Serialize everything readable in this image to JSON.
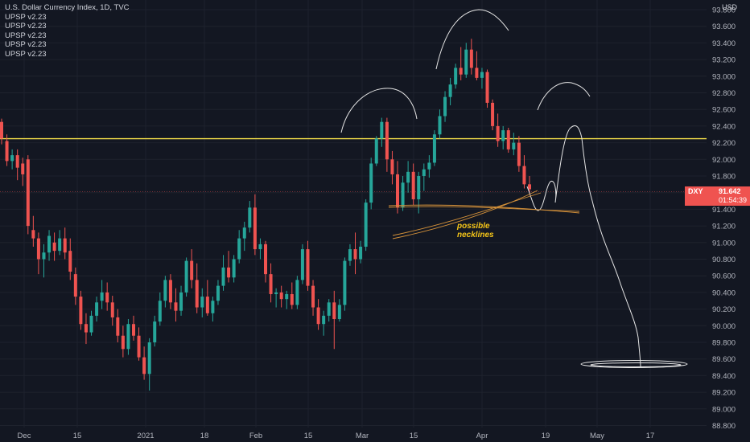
{
  "header": {
    "title": "U.S. Dollar Currency Index, 1D, TVC",
    "indicators": [
      "UPSP v2.23",
      "UPSP v2.23",
      "UPSP v2.23",
      "UPSP v2.23",
      "UPSP v2.23"
    ]
  },
  "price_axis": {
    "currency": "USD",
    "ticks": [
      "93.800",
      "93.600",
      "93.400",
      "93.200",
      "93.000",
      "92.800",
      "92.600",
      "92.400",
      "92.200",
      "92.000",
      "91.800",
      "91.600",
      "91.400",
      "91.200",
      "91.000",
      "90.800",
      "90.600",
      "90.400",
      "90.200",
      "90.000",
      "89.800",
      "89.600",
      "89.400",
      "89.200",
      "89.000",
      "88.800"
    ]
  },
  "time_axis": {
    "ticks": [
      "Dec",
      "15",
      "2021",
      "18",
      "Feb",
      "15",
      "Mar",
      "15",
      "Apr",
      "19",
      "May",
      "17"
    ]
  },
  "price_tag": {
    "symbol": "DXY",
    "value": "91.642",
    "countdown": "01:54:39"
  },
  "annotation": {
    "line1": "possible",
    "line2": "necklines"
  },
  "chart_data": {
    "type": "candlestick",
    "symbol": "DXY",
    "interval": "1D",
    "ylim": [
      88.7,
      93.85
    ],
    "horizontal_line": 92.27,
    "last_price": 91.642,
    "ohlc": [
      [
        92.45,
        92.49,
        92.18,
        92.25
      ],
      [
        92.22,
        92.3,
        91.92,
        91.98
      ],
      [
        91.98,
        92.12,
        91.88,
        92.05
      ],
      [
        92.05,
        92.12,
        91.75,
        91.9
      ],
      [
        91.95,
        92.02,
        91.68,
        91.82
      ],
      [
        92.0,
        92.05,
        91.1,
        91.2
      ],
      [
        91.15,
        91.32,
        90.95,
        91.05
      ],
      [
        91.05,
        91.12,
        90.62,
        90.8
      ],
      [
        90.8,
        90.98,
        90.58,
        90.88
      ],
      [
        90.88,
        91.15,
        90.78,
        91.08
      ],
      [
        91.0,
        91.12,
        90.78,
        90.9
      ],
      [
        90.9,
        91.15,
        90.85,
        91.05
      ],
      [
        91.05,
        91.18,
        90.8,
        90.88
      ],
      [
        90.9,
        91.05,
        90.55,
        90.65
      ],
      [
        90.62,
        90.7,
        90.25,
        90.35
      ],
      [
        90.35,
        90.42,
        89.95,
        90.02
      ],
      [
        90.02,
        90.15,
        89.78,
        89.92
      ],
      [
        89.92,
        90.18,
        89.88,
        90.12
      ],
      [
        90.12,
        90.35,
        90.05,
        90.28
      ],
      [
        90.3,
        90.55,
        90.2,
        90.4
      ],
      [
        90.4,
        90.52,
        90.18,
        90.28
      ],
      [
        90.28,
        90.36,
        90.0,
        90.1
      ],
      [
        90.1,
        90.2,
        89.8,
        89.88
      ],
      [
        89.88,
        90.0,
        89.62,
        89.72
      ],
      [
        89.72,
        90.08,
        89.65,
        90.02
      ],
      [
        90.02,
        90.12,
        89.82,
        89.88
      ],
      [
        89.88,
        89.98,
        89.58,
        89.62
      ],
      [
        89.62,
        89.75,
        89.35,
        89.42
      ],
      [
        89.42,
        89.85,
        89.22,
        89.8
      ],
      [
        89.8,
        90.12,
        89.75,
        90.05
      ],
      [
        90.05,
        90.4,
        90.0,
        90.3
      ],
      [
        90.3,
        90.6,
        90.22,
        90.55
      ],
      [
        90.55,
        90.62,
        90.2,
        90.28
      ],
      [
        90.28,
        90.45,
        90.05,
        90.18
      ],
      [
        90.18,
        90.48,
        90.12,
        90.4
      ],
      [
        90.4,
        90.82,
        90.35,
        90.78
      ],
      [
        90.78,
        90.92,
        90.45,
        90.55
      ],
      [
        90.55,
        90.75,
        90.15,
        90.22
      ],
      [
        90.22,
        90.45,
        90.1,
        90.35
      ],
      [
        90.35,
        90.55,
        90.12,
        90.15
      ],
      [
        90.15,
        90.35,
        90.05,
        90.3
      ],
      [
        90.3,
        90.55,
        90.25,
        90.48
      ],
      [
        90.48,
        90.85,
        90.42,
        90.7
      ],
      [
        90.7,
        90.9,
        90.52,
        90.58
      ],
      [
        90.58,
        90.85,
        90.52,
        90.8
      ],
      [
        90.8,
        91.15,
        90.75,
        91.05
      ],
      [
        91.05,
        91.25,
        90.9,
        91.18
      ],
      [
        91.18,
        91.5,
        91.12,
        91.42
      ],
      [
        91.42,
        91.58,
        90.85,
        90.92
      ],
      [
        90.92,
        91.05,
        90.8,
        90.98
      ],
      [
        90.98,
        91.02,
        90.52,
        90.62
      ],
      [
        90.62,
        90.75,
        90.28,
        90.38
      ],
      [
        90.38,
        90.45,
        90.22,
        90.4
      ],
      [
        90.4,
        90.48,
        90.22,
        90.32
      ],
      [
        90.32,
        90.42,
        90.2,
        90.38
      ],
      [
        90.38,
        90.52,
        90.2,
        90.25
      ],
      [
        90.25,
        90.6,
        90.2,
        90.55
      ],
      [
        90.55,
        90.98,
        90.5,
        90.92
      ],
      [
        90.92,
        91.02,
        90.42,
        90.48
      ],
      [
        90.48,
        90.55,
        90.12,
        90.22
      ],
      [
        90.22,
        90.32,
        89.95,
        90.02
      ],
      [
        90.02,
        90.18,
        89.88,
        90.12
      ],
      [
        90.12,
        90.32,
        90.05,
        90.28
      ],
      [
        90.28,
        90.42,
        89.72,
        90.08
      ],
      [
        90.08,
        90.32,
        90.05,
        90.25
      ],
      [
        90.25,
        90.82,
        90.18,
        90.78
      ],
      [
        90.78,
        90.98,
        90.72,
        90.92
      ],
      [
        90.92,
        91.12,
        90.62,
        90.8
      ],
      [
        90.8,
        91.02,
        90.75,
        90.95
      ],
      [
        90.95,
        91.52,
        90.9,
        91.48
      ],
      [
        91.48,
        92.02,
        91.4,
        91.95
      ],
      [
        91.95,
        92.28,
        91.92,
        92.25
      ],
      [
        92.25,
        92.5,
        92.15,
        92.45
      ],
      [
        92.45,
        92.5,
        91.85,
        92.0
      ],
      [
        92.0,
        92.1,
        91.7,
        91.82
      ],
      [
        91.82,
        91.98,
        91.35,
        91.42
      ],
      [
        91.42,
        91.8,
        91.38,
        91.72
      ],
      [
        91.72,
        91.98,
        91.6,
        91.85
      ],
      [
        91.85,
        91.95,
        91.45,
        91.52
      ],
      [
        91.52,
        91.85,
        91.35,
        91.8
      ],
      [
        91.8,
        91.95,
        91.62,
        91.88
      ],
      [
        91.88,
        92.05,
        91.78,
        91.96
      ],
      [
        91.96,
        92.35,
        91.92,
        92.3
      ],
      [
        92.3,
        92.6,
        92.25,
        92.52
      ],
      [
        92.52,
        92.82,
        92.45,
        92.75
      ],
      [
        92.75,
        92.98,
        92.65,
        92.9
      ],
      [
        92.9,
        93.15,
        92.85,
        93.1
      ],
      [
        93.1,
        93.35,
        92.95,
        93.02
      ],
      [
        93.02,
        93.4,
        92.98,
        93.32
      ],
      [
        93.32,
        93.45,
        93.02,
        93.1
      ],
      [
        93.1,
        93.3,
        92.95,
        92.98
      ],
      [
        92.98,
        93.1,
        92.85,
        93.05
      ],
      [
        93.05,
        93.08,
        92.62,
        92.68
      ],
      [
        92.68,
        92.72,
        92.35,
        92.4
      ],
      [
        92.4,
        92.55,
        92.15,
        92.22
      ],
      [
        92.22,
        92.4,
        92.12,
        92.35
      ],
      [
        92.35,
        92.38,
        92.08,
        92.12
      ],
      [
        92.12,
        92.32,
        92.05,
        92.2
      ],
      [
        92.2,
        92.28,
        91.85,
        91.92
      ],
      [
        91.92,
        92.05,
        91.65,
        91.7
      ],
      [
        91.7,
        91.8,
        91.58,
        91.64
      ]
    ]
  }
}
